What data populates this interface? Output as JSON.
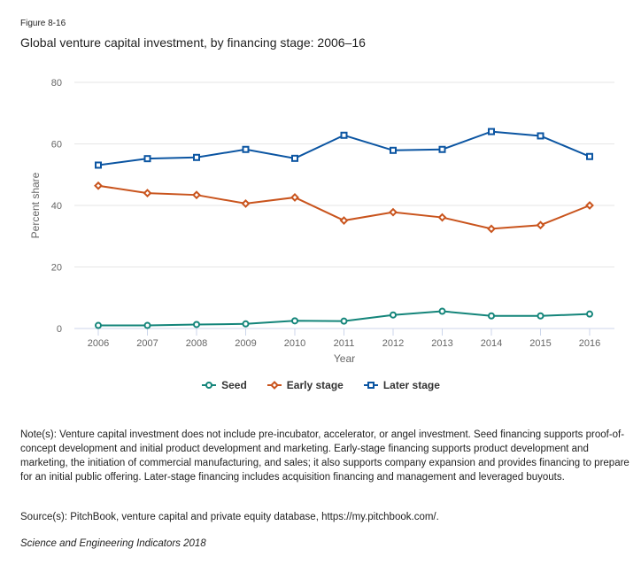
{
  "figure_label": "Figure 8-16",
  "title": "Global venture capital investment, by financing stage: 2006–16",
  "note": "Note(s): Venture capital investment does not include pre-incubator, accelerator, or angel investment. Seed financing supports proof-of-concept development and initial product development and marketing. Early-stage financing supports product development and marketing, the initiation of commercial manufacturing, and sales; it also supports company expansion and provides financing to prepare for an initial public offering. Later-stage financing includes acquisition financing and management and leveraged buyouts.",
  "source": "Source(s): PitchBook, venture capital and private equity database, https://my.pitchbook.com/.",
  "credit": "Science and Engineering Indicators 2018",
  "chart_data": {
    "type": "line",
    "title": "Global venture capital investment, by financing stage: 2006–16",
    "xlabel": "Year",
    "ylabel": "Percent share",
    "x": [
      "2006",
      "2007",
      "2008",
      "2009",
      "2010",
      "2011",
      "2012",
      "2013",
      "2014",
      "2015",
      "2016"
    ],
    "ylim": [
      0,
      80
    ],
    "yticks": [
      0,
      20,
      40,
      60,
      80
    ],
    "grid": true,
    "legend_position": "bottom-center",
    "series": [
      {
        "name": "Seed",
        "color": "#14857a",
        "marker": "circle",
        "values": [
          1.0,
          1.0,
          1.3,
          1.5,
          2.5,
          2.4,
          4.4,
          5.6,
          4.1,
          4.1,
          4.7
        ]
      },
      {
        "name": "Early stage",
        "color": "#c9541d",
        "marker": "diamond",
        "values": [
          46.4,
          44.0,
          43.4,
          40.6,
          42.6,
          35.1,
          37.8,
          36.1,
          32.4,
          33.6,
          40.0
        ]
      },
      {
        "name": "Later stage",
        "color": "#0b55a2",
        "marker": "square",
        "values": [
          53.1,
          55.2,
          55.6,
          58.2,
          55.3,
          62.8,
          57.9,
          58.2,
          64.0,
          62.6,
          55.9
        ]
      }
    ]
  }
}
